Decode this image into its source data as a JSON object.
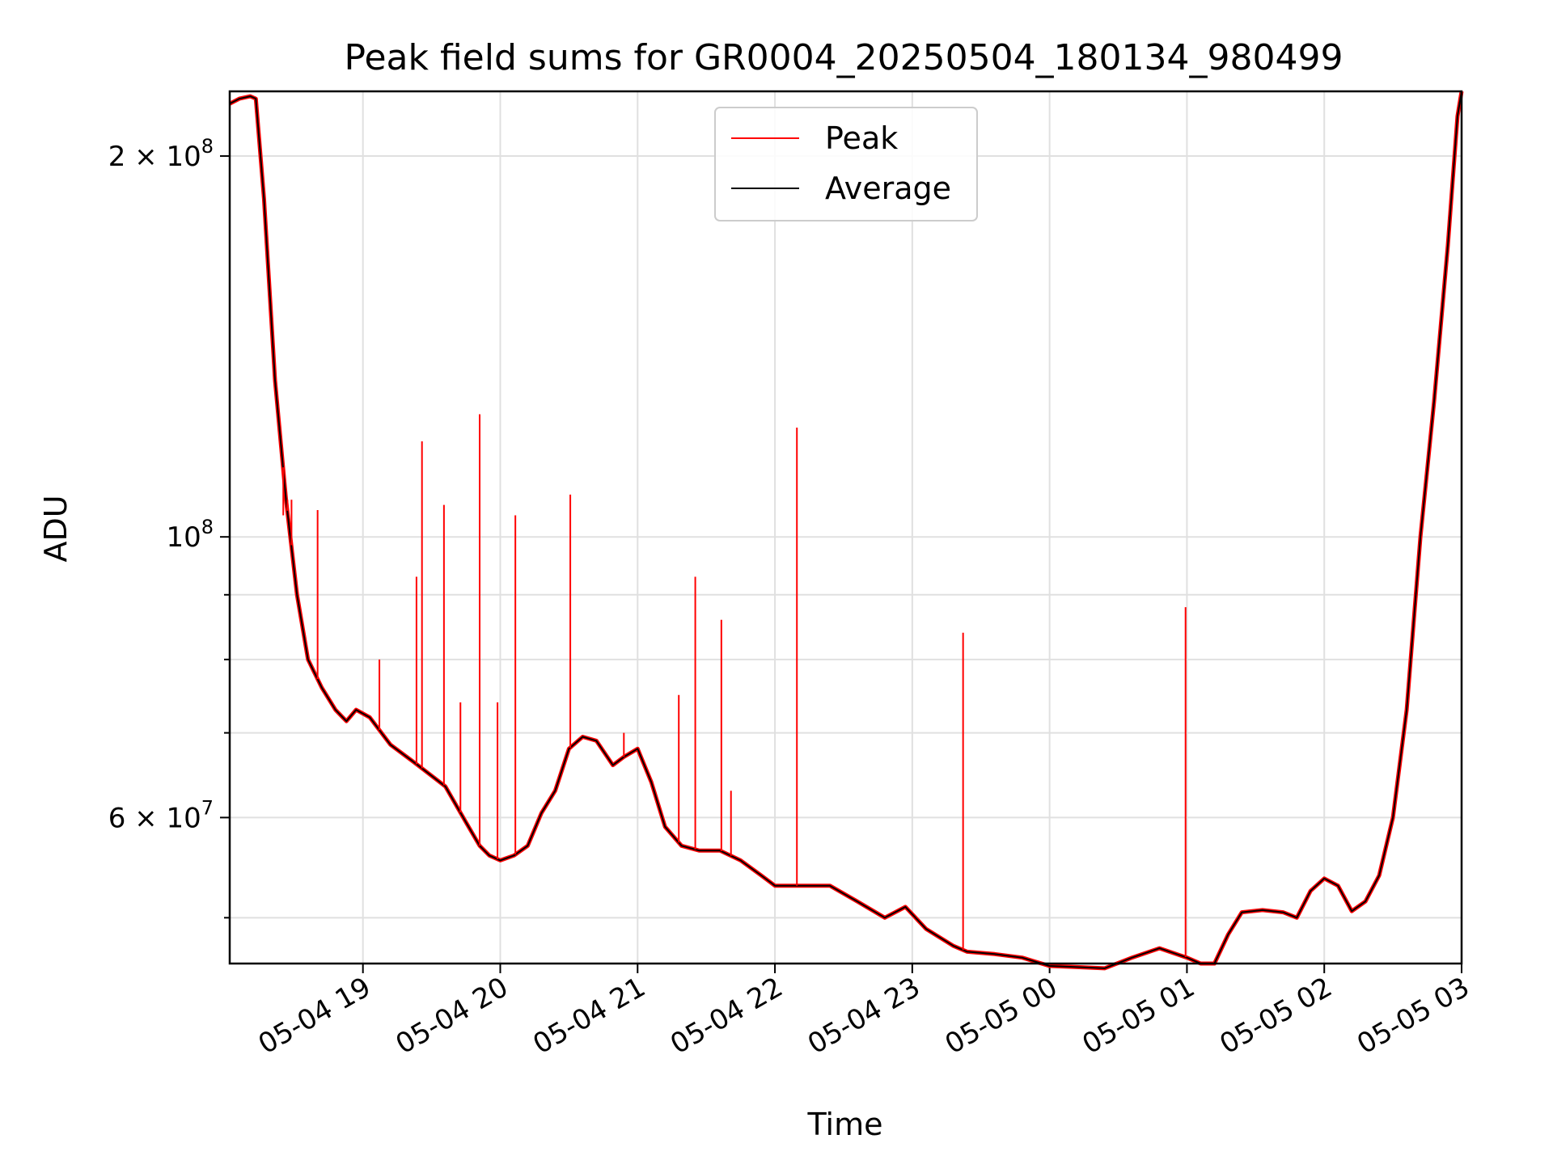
{
  "chart_data": {
    "type": "line",
    "title": "Peak field sums for GR0004_20250504_180134_980499",
    "xlabel": "Time",
    "ylabel": "ADU",
    "yscale": "log",
    "grid": true,
    "legend_position": "top-center",
    "xlim_hours": [
      18.03,
      27.0
    ],
    "ylim": [
      46000000,
      225000000
    ],
    "x_ticks": [
      {
        "label": "05-04 19",
        "hour": 19
      },
      {
        "label": "05-04 20",
        "hour": 20
      },
      {
        "label": "05-04 21",
        "hour": 21
      },
      {
        "label": "05-04 22",
        "hour": 22
      },
      {
        "label": "05-04 23",
        "hour": 23
      },
      {
        "label": "05-05 00",
        "hour": 24
      },
      {
        "label": "05-05 01",
        "hour": 25
      },
      {
        "label": "05-05 02",
        "hour": 26
      },
      {
        "label": "05-05 03",
        "hour": 27
      }
    ],
    "y_major_ticks": [
      {
        "mantissa": "2",
        "exponent": "8",
        "value": 200000000
      },
      {
        "mantissa": "",
        "exponent": "8",
        "value": 100000000
      },
      {
        "mantissa": "6",
        "exponent": "7",
        "value": 60000000
      }
    ],
    "y_minor_ticks": [
      50000000,
      70000000,
      80000000,
      90000000
    ],
    "series": [
      {
        "name": "Average",
        "color": "#000000",
        "hours": [
          18.03,
          18.1,
          18.18,
          18.22,
          18.28,
          18.36,
          18.44,
          18.52,
          18.6,
          18.7,
          18.8,
          18.88,
          18.95,
          19.05,
          19.2,
          19.4,
          19.6,
          19.75,
          19.85,
          19.92,
          20.0,
          20.1,
          20.2,
          20.3,
          20.4,
          20.5,
          20.6,
          20.7,
          20.82,
          20.9,
          21.0,
          21.1,
          21.2,
          21.32,
          21.45,
          21.6,
          21.75,
          21.9,
          22.0,
          22.2,
          22.4,
          22.6,
          22.8,
          22.95,
          23.1,
          23.3,
          23.4,
          23.6,
          23.8,
          24.0,
          24.2,
          24.4,
          24.6,
          24.8,
          25.0,
          25.1,
          25.2,
          25.3,
          25.4,
          25.55,
          25.7,
          25.8,
          25.9,
          26.0,
          26.1,
          26.2,
          26.3,
          26.4,
          26.5,
          26.6,
          26.7,
          26.8,
          26.9,
          26.97,
          27.0
        ],
        "values": [
          220000000,
          222000000,
          223000000,
          222000000,
          185000000,
          133000000,
          107000000,
          90000000,
          80000000,
          76000000,
          73000000,
          71500000,
          73000000,
          72000000,
          68500000,
          66000000,
          63500000,
          59500000,
          57000000,
          56000000,
          55500000,
          56000000,
          57000000,
          60500000,
          63000000,
          68000000,
          69500000,
          69000000,
          66000000,
          67000000,
          68000000,
          64000000,
          59000000,
          57000000,
          56500000,
          56500000,
          55500000,
          54000000,
          53000000,
          53000000,
          53000000,
          51500000,
          50000000,
          51000000,
          49000000,
          47500000,
          47000000,
          46800000,
          46500000,
          45800000,
          45700000,
          45600000,
          46500000,
          47300000,
          46500000,
          46000000,
          46000000,
          48500000,
          50500000,
          50700000,
          50500000,
          50000000,
          52500000,
          53700000,
          53000000,
          50600000,
          51500000,
          54000000,
          60000000,
          73000000,
          100000000,
          128000000,
          170000000,
          215000000,
          225000000
        ]
      },
      {
        "name": "Peak",
        "color": "#ff0000",
        "spikes": [
          {
            "hour": 18.42,
            "value": 104000000
          },
          {
            "hour": 18.45,
            "value": 107000000
          },
          {
            "hour": 18.48,
            "value": 107000000
          },
          {
            "hour": 18.67,
            "value": 105000000
          },
          {
            "hour": 19.12,
            "value": 80000000
          },
          {
            "hour": 19.39,
            "value": 93000000
          },
          {
            "hour": 19.43,
            "value": 119000000
          },
          {
            "hour": 19.59,
            "value": 106000000
          },
          {
            "hour": 19.71,
            "value": 74000000
          },
          {
            "hour": 19.85,
            "value": 125000000
          },
          {
            "hour": 19.98,
            "value": 74000000
          },
          {
            "hour": 20.11,
            "value": 104000000
          },
          {
            "hour": 20.51,
            "value": 108000000
          },
          {
            "hour": 20.9,
            "value": 70000000
          },
          {
            "hour": 21.3,
            "value": 75000000
          },
          {
            "hour": 21.42,
            "value": 93000000
          },
          {
            "hour": 21.61,
            "value": 86000000
          },
          {
            "hour": 21.68,
            "value": 63000000
          },
          {
            "hour": 22.16,
            "value": 122000000
          },
          {
            "hour": 23.37,
            "value": 84000000
          },
          {
            "hour": 24.99,
            "value": 88000000
          }
        ]
      }
    ]
  }
}
